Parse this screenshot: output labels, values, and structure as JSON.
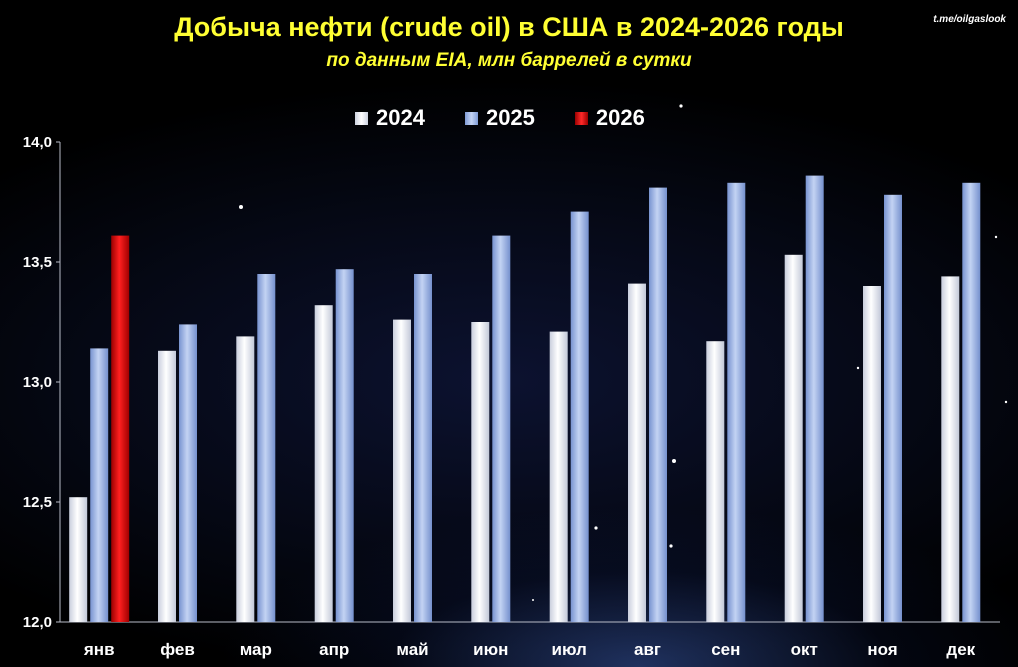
{
  "watermark": "t.me/oilgaslook",
  "colors": {
    "2024": "#f2f4fa",
    "2025": "#9fb7e6",
    "2026": "#d40e0e",
    "title": "#ffff33",
    "axis": "#b8bcc8"
  },
  "chart_data": {
    "type": "bar",
    "title": "Добыча нефти (crude oil) в США в 2024-2026 годы",
    "subtitle": "по данным EIA, млн баррелей в сутки",
    "categories": [
      "янв",
      "фев",
      "мар",
      "апр",
      "май",
      "июн",
      "июл",
      "авг",
      "сен",
      "окт",
      "ноя",
      "дек"
    ],
    "series": [
      {
        "name": "2024",
        "values": [
          12.52,
          13.13,
          13.19,
          13.32,
          13.26,
          13.25,
          13.21,
          13.41,
          13.17,
          13.53,
          13.4,
          13.44
        ]
      },
      {
        "name": "2025",
        "values": [
          13.14,
          13.24,
          13.45,
          13.47,
          13.45,
          13.61,
          13.71,
          13.81,
          13.83,
          13.86,
          13.78,
          13.83
        ]
      },
      {
        "name": "2026",
        "values": [
          13.61,
          null,
          null,
          null,
          null,
          null,
          null,
          null,
          null,
          null,
          null,
          null
        ]
      }
    ],
    "ylim": [
      12.0,
      14.0
    ],
    "yticks": [
      "12,0",
      "12,5",
      "13,0",
      "13,5",
      "14,0"
    ],
    "xlabel": "",
    "ylabel": "",
    "grid": false,
    "legend": "top-center"
  }
}
